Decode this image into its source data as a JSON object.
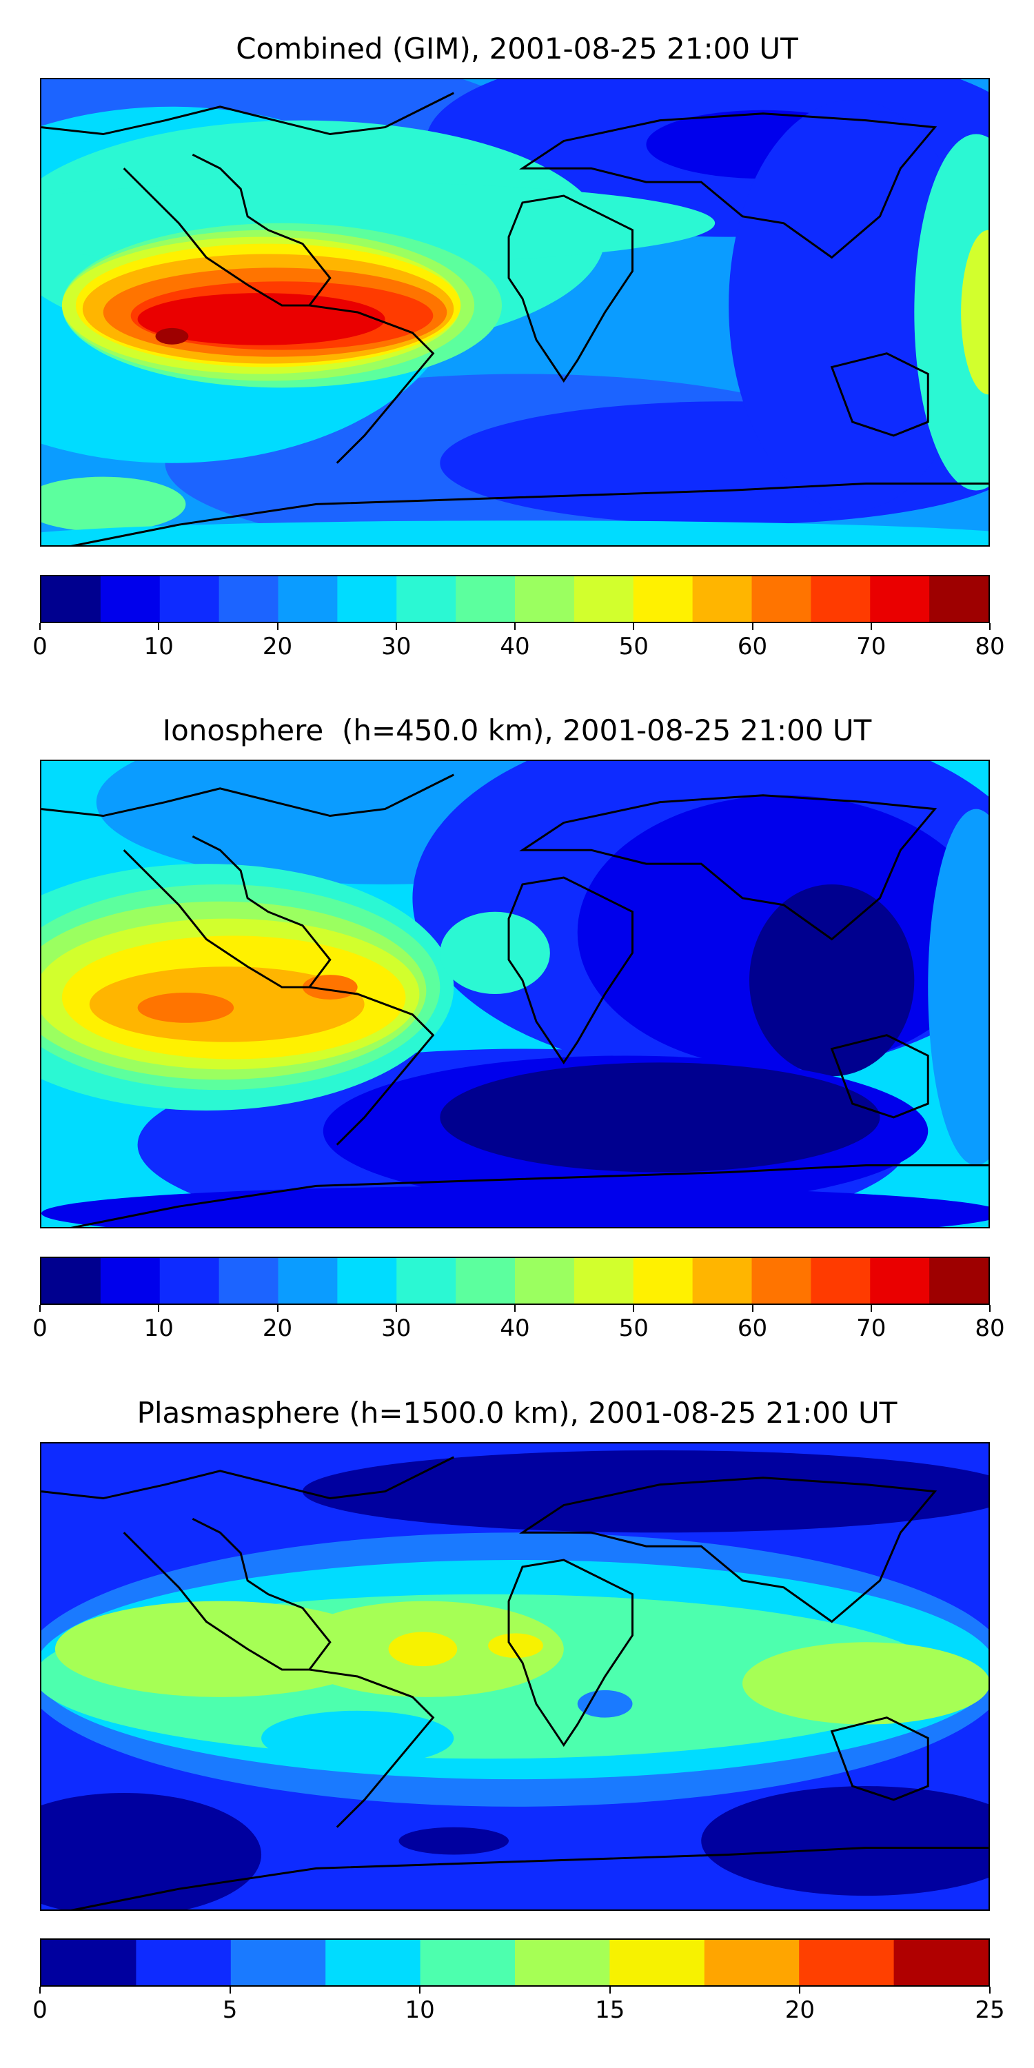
{
  "panels": [
    {
      "id": "combined",
      "title": "Combined (GIM), 2001-08-25 21:00 UT",
      "colorbar": {
        "min": 0,
        "max": 80,
        "levels": [
          0,
          5,
          10,
          15,
          20,
          25,
          30,
          35,
          40,
          45,
          50,
          55,
          60,
          65,
          70,
          75,
          80
        ],
        "colors": [
          "#00008f",
          "#0000ec",
          "#0e2bff",
          "#1c64ff",
          "#0b9cff",
          "#00dcff",
          "#2bf8d3",
          "#5cff9e",
          "#9bff60",
          "#d2ff2d",
          "#fff100",
          "#ffb500",
          "#ff7400",
          "#ff3b00",
          "#ea0000",
          "#9e0000"
        ],
        "ticks": [
          0,
          10,
          20,
          30,
          40,
          50,
          60,
          70,
          80
        ]
      }
    },
    {
      "id": "ionosphere",
      "title": "Ionosphere  (h=450.0 km), 2001-08-25 21:00 UT",
      "colorbar": {
        "min": 0,
        "max": 80,
        "levels": [
          0,
          5,
          10,
          15,
          20,
          25,
          30,
          35,
          40,
          45,
          50,
          55,
          60,
          65,
          70,
          75,
          80
        ],
        "colors": [
          "#00008f",
          "#0000ec",
          "#0e2bff",
          "#1c64ff",
          "#0b9cff",
          "#00dcff",
          "#2bf8d3",
          "#5cff9e",
          "#9bff60",
          "#d2ff2d",
          "#fff100",
          "#ffb500",
          "#ff7400",
          "#ff3b00",
          "#ea0000",
          "#9e0000"
        ],
        "ticks": [
          0,
          10,
          20,
          30,
          40,
          50,
          60,
          70,
          80
        ]
      }
    },
    {
      "id": "plasmasphere",
      "title": "Plasmasphere (h=1500.0 km), 2001-08-25 21:00 UT",
      "colorbar": {
        "min": 0,
        "max": 25,
        "levels": [
          0,
          2.5,
          5,
          7.5,
          10,
          12.5,
          15,
          17.5,
          20,
          22.5,
          25
        ],
        "colors": [
          "#00009f",
          "#0e2bff",
          "#1a7aff",
          "#00dcff",
          "#4dffae",
          "#a6ff55",
          "#f7f200",
          "#ffa500",
          "#ff4000",
          "#b00000"
        ],
        "ticks": [
          0,
          5,
          10,
          15,
          20,
          25
        ]
      }
    }
  ],
  "colors": {
    "coastline": "#000000",
    "frame": "#000000",
    "background": "#ffffff"
  }
}
